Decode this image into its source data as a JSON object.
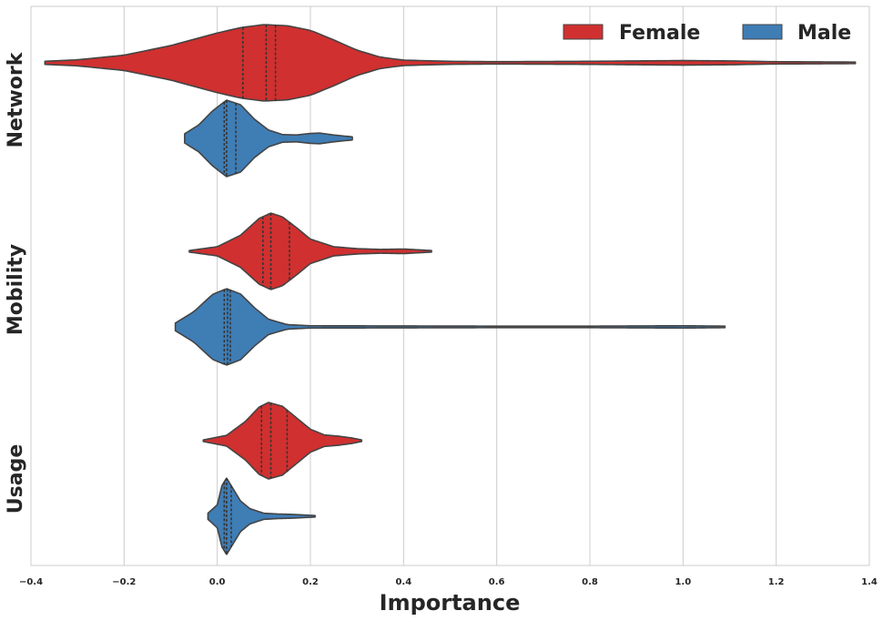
{
  "chart_data": {
    "type": "violin",
    "orientation": "horizontal",
    "xlabel": "Importance",
    "ylabel": "",
    "xlim": [
      -0.4,
      1.4
    ],
    "x_ticks": [
      -0.4,
      -0.2,
      0.0,
      0.2,
      0.4,
      0.6,
      0.8,
      1.0,
      1.2,
      1.4
    ],
    "x_tick_labels": [
      "−0.4",
      "−0.2",
      "0.0",
      "0.2",
      "0.4",
      "0.6",
      "0.8",
      "1.0",
      "1.2",
      "1.4"
    ],
    "grid": "vertical",
    "categories": [
      "Network",
      "Mobility",
      "Usage"
    ],
    "legend": {
      "position": "top-right",
      "entries": [
        {
          "name": "Female",
          "color": "#d0302f"
        },
        {
          "name": "Male",
          "color": "#3f7db5"
        }
      ]
    },
    "violins": [
      {
        "category": "Network",
        "series": "Female",
        "color": "#d0302f",
        "min": -0.37,
        "max": 1.37,
        "q1": 0.055,
        "median": 0.105,
        "q3": 0.125,
        "density": [
          [
            -0.37,
            0.04
          ],
          [
            -0.3,
            0.08
          ],
          [
            -0.2,
            0.2
          ],
          [
            -0.1,
            0.45
          ],
          [
            0.0,
            0.78
          ],
          [
            0.05,
            0.92
          ],
          [
            0.1,
            1.0
          ],
          [
            0.15,
            0.97
          ],
          [
            0.2,
            0.85
          ],
          [
            0.25,
            0.6
          ],
          [
            0.3,
            0.33
          ],
          [
            0.35,
            0.15
          ],
          [
            0.4,
            0.07
          ],
          [
            0.5,
            0.04
          ],
          [
            0.6,
            0.03
          ],
          [
            0.8,
            0.04
          ],
          [
            1.0,
            0.06
          ],
          [
            1.1,
            0.05
          ],
          [
            1.2,
            0.03
          ],
          [
            1.37,
            0.02
          ]
        ]
      },
      {
        "category": "Network",
        "series": "Male",
        "color": "#3f7db5",
        "min": -0.07,
        "max": 0.29,
        "q1": 0.015,
        "median": 0.02,
        "q3": 0.04,
        "density": [
          [
            -0.07,
            0.12
          ],
          [
            -0.04,
            0.35
          ],
          [
            -0.01,
            0.72
          ],
          [
            0.02,
            1.0
          ],
          [
            0.05,
            0.88
          ],
          [
            0.08,
            0.5
          ],
          [
            0.11,
            0.22
          ],
          [
            0.14,
            0.1
          ],
          [
            0.17,
            0.09
          ],
          [
            0.2,
            0.13
          ],
          [
            0.22,
            0.14
          ],
          [
            0.25,
            0.09
          ],
          [
            0.29,
            0.04
          ]
        ]
      },
      {
        "category": "Mobility",
        "series": "Female",
        "color": "#d0302f",
        "min": -0.06,
        "max": 0.46,
        "q1": 0.098,
        "median": 0.115,
        "q3": 0.155,
        "density": [
          [
            -0.06,
            0.02
          ],
          [
            0.0,
            0.12
          ],
          [
            0.05,
            0.42
          ],
          [
            0.09,
            0.86
          ],
          [
            0.115,
            1.0
          ],
          [
            0.14,
            0.9
          ],
          [
            0.17,
            0.62
          ],
          [
            0.2,
            0.32
          ],
          [
            0.25,
            0.12
          ],
          [
            0.3,
            0.07
          ],
          [
            0.35,
            0.05
          ],
          [
            0.4,
            0.06
          ],
          [
            0.43,
            0.04
          ],
          [
            0.46,
            0.02
          ]
        ]
      },
      {
        "category": "Mobility",
        "series": "Male",
        "color": "#3f7db5",
        "min": -0.09,
        "max": 1.09,
        "q1": 0.015,
        "median": 0.022,
        "q3": 0.028,
        "density": [
          [
            -0.09,
            0.1
          ],
          [
            -0.05,
            0.4
          ],
          [
            -0.01,
            0.85
          ],
          [
            0.02,
            1.0
          ],
          [
            0.05,
            0.86
          ],
          [
            0.08,
            0.5
          ],
          [
            0.11,
            0.2
          ],
          [
            0.15,
            0.06
          ],
          [
            0.2,
            0.03
          ],
          [
            0.4,
            0.025
          ],
          [
            0.6,
            0.02
          ],
          [
            0.8,
            0.02
          ],
          [
            1.0,
            0.03
          ],
          [
            1.09,
            0.02
          ]
        ]
      },
      {
        "category": "Usage",
        "series": "Female",
        "color": "#d0302f",
        "min": -0.03,
        "max": 0.31,
        "q1": 0.095,
        "median": 0.115,
        "q3": 0.15,
        "density": [
          [
            -0.03,
            0.02
          ],
          [
            0.02,
            0.14
          ],
          [
            0.06,
            0.5
          ],
          [
            0.09,
            0.88
          ],
          [
            0.11,
            1.0
          ],
          [
            0.14,
            0.9
          ],
          [
            0.17,
            0.6
          ],
          [
            0.2,
            0.3
          ],
          [
            0.23,
            0.15
          ],
          [
            0.26,
            0.12
          ],
          [
            0.29,
            0.07
          ],
          [
            0.31,
            0.02
          ]
        ]
      },
      {
        "category": "Usage",
        "series": "Male",
        "color": "#3f7db5",
        "min": -0.02,
        "max": 0.21,
        "q1": 0.015,
        "median": 0.02,
        "q3": 0.03,
        "density": [
          [
            -0.02,
            0.08
          ],
          [
            0.0,
            0.3
          ],
          [
            0.01,
            0.8
          ],
          [
            0.02,
            1.0
          ],
          [
            0.03,
            0.8
          ],
          [
            0.05,
            0.4
          ],
          [
            0.07,
            0.2
          ],
          [
            0.1,
            0.08
          ],
          [
            0.13,
            0.06
          ],
          [
            0.16,
            0.05
          ],
          [
            0.21,
            0.02
          ]
        ]
      }
    ]
  }
}
